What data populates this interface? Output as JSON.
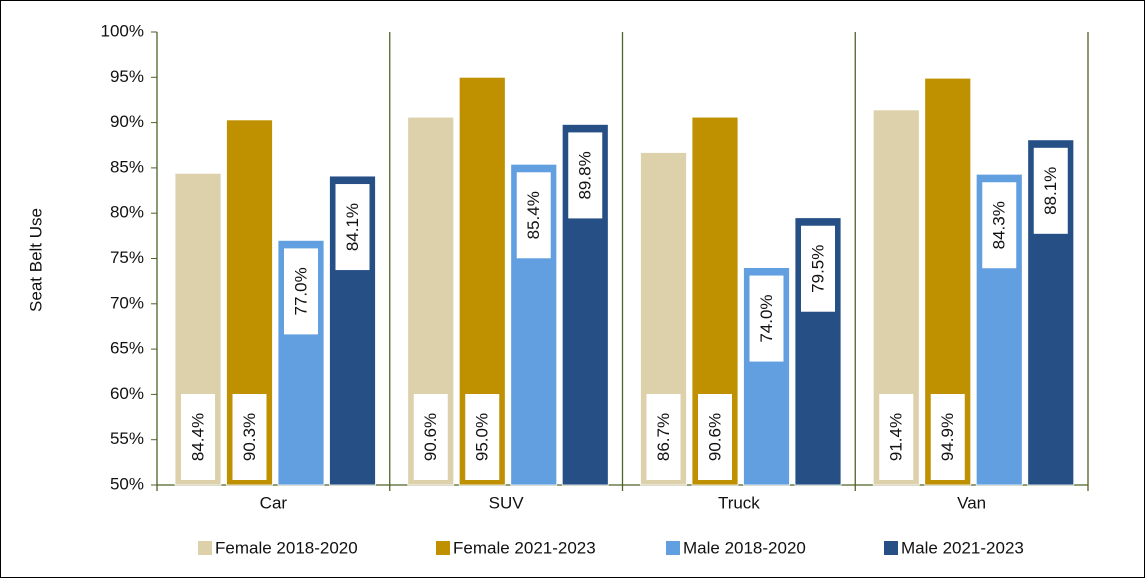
{
  "chart_data": {
    "type": "bar",
    "y_label": "Seat Belt Use",
    "categories": [
      "Car",
      "SUV",
      "Truck",
      "Van"
    ],
    "series": [
      {
        "name": "Female 2018-2020",
        "color": "#ddd1ab",
        "values": [
          84.4,
          90.6,
          86.7,
          91.4
        ],
        "value_labels": [
          "84.4%",
          "90.6%",
          "86.7%",
          "91.4%"
        ]
      },
      {
        "name": "Female 2021-2023",
        "color": "#bf9000",
        "values": [
          90.3,
          95.0,
          90.6,
          94.9
        ],
        "value_labels": [
          "90.3%",
          "95.0%",
          "90.6%",
          "94.9%"
        ]
      },
      {
        "name": "Male 2018-2020",
        "color": "#629fe0",
        "values": [
          77.0,
          85.4,
          74.0,
          84.3
        ],
        "value_labels": [
          "77.0%",
          "85.4%",
          "74.0%",
          "84.3%"
        ]
      },
      {
        "name": "Male 2021-2023",
        "color": "#265085",
        "values": [
          84.1,
          89.8,
          79.5,
          88.1
        ],
        "value_labels": [
          "84.1%",
          "89.8%",
          "79.5%",
          "88.1%"
        ]
      }
    ],
    "ylim": [
      50,
      100
    ],
    "yticks": [
      {
        "value": 50,
        "label": "50%"
      },
      {
        "value": 55,
        "label": "55%"
      },
      {
        "value": 60,
        "label": "60%"
      },
      {
        "value": 65,
        "label": "65%"
      },
      {
        "value": 70,
        "label": "70%"
      },
      {
        "value": 75,
        "label": "75%"
      },
      {
        "value": 80,
        "label": "80%"
      },
      {
        "value": 85,
        "label": "85%"
      },
      {
        "value": 90,
        "label": "90%"
      },
      {
        "value": 95,
        "label": "95%"
      },
      {
        "value": 100,
        "label": "100%"
      }
    ],
    "legend": "bottom"
  }
}
